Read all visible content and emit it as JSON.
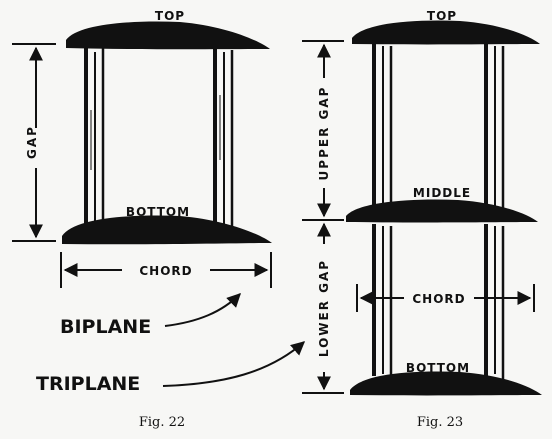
{
  "fig22": {
    "top": "TOP",
    "bottom": "BOTTOM",
    "gap": "GAP",
    "chord": "CHORD",
    "caption": "Fig. 22"
  },
  "fig23": {
    "top": "TOP",
    "middle": "MIDDLE",
    "bottom": "BOTTOM",
    "upper_gap": "UPPER GAP",
    "lower_gap": "LOWER GAP",
    "chord": "CHORD",
    "caption": "Fig. 23"
  },
  "callouts": {
    "biplane": "BIPLANE",
    "triplane": "TRIPLANE"
  },
  "colors": {
    "ink": "#111111",
    "paper": "#f7f7f5"
  }
}
